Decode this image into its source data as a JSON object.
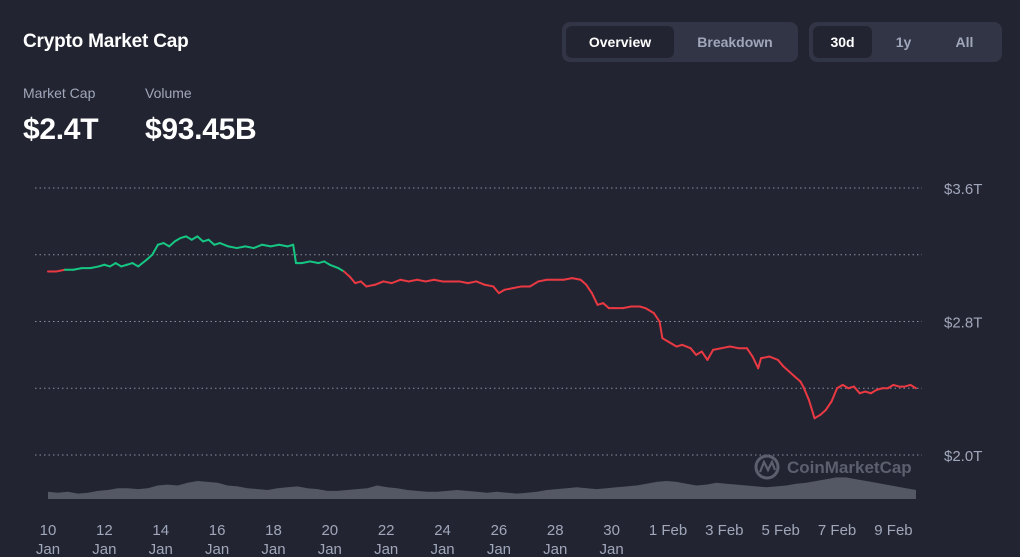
{
  "header": {
    "title": "Crypto Market Cap"
  },
  "tabs": {
    "views": [
      "Overview",
      "Breakdown"
    ],
    "active_view": "Overview"
  },
  "ranges": {
    "options": [
      "30d",
      "1y",
      "All"
    ],
    "active": "30d"
  },
  "stats": {
    "market_cap_label": "Market Cap",
    "market_cap_value": "$2.4T",
    "volume_label": "Volume",
    "volume_value": "$93.45B"
  },
  "watermark": "CoinMarketCap",
  "colors": {
    "up": "#16c784",
    "down": "#ea3943",
    "volume": "#5a5d6a",
    "grid": "#858ca2"
  },
  "chart_data": {
    "type": "line",
    "y_unit": "trillion USD",
    "ylim": [
      1.7,
      3.6
    ],
    "y_ticks": [
      {
        "value": 3.6,
        "label": "$3.6T"
      },
      {
        "value": 2.8,
        "label": "$2.8T"
      },
      {
        "value": 2.0,
        "label": "$2.0T"
      }
    ],
    "y_gridlines": [
      3.6,
      3.2,
      2.8,
      2.4,
      2.0
    ],
    "x_ticks": [
      {
        "x": 0,
        "l1": "10",
        "l2": "Jan"
      },
      {
        "x": 2,
        "l1": "12",
        "l2": "Jan"
      },
      {
        "x": 4,
        "l1": "14",
        "l2": "Jan"
      },
      {
        "x": 6,
        "l1": "16",
        "l2": "Jan"
      },
      {
        "x": 8,
        "l1": "18",
        "l2": "Jan"
      },
      {
        "x": 10,
        "l1": "20",
        "l2": "Jan"
      },
      {
        "x": 12,
        "l1": "22",
        "l2": "Jan"
      },
      {
        "x": 14,
        "l1": "24",
        "l2": "Jan"
      },
      {
        "x": 16,
        "l1": "26",
        "l2": "Jan"
      },
      {
        "x": 18,
        "l1": "28",
        "l2": "Jan"
      },
      {
        "x": 20,
        "l1": "30",
        "l2": "Jan"
      },
      {
        "x": 22,
        "l1": "1 Feb",
        "l2": ""
      },
      {
        "x": 24,
        "l1": "3 Feb",
        "l2": ""
      },
      {
        "x": 26,
        "l1": "5 Feb",
        "l2": ""
      },
      {
        "x": 28,
        "l1": "7 Feb",
        "l2": ""
      },
      {
        "x": 30,
        "l1": "9 Feb",
        "l2": ""
      }
    ],
    "baseline_value": 3.11,
    "series": [
      {
        "values": [
          [
            0.0,
            3.1
          ],
          [
            0.3,
            3.1
          ],
          [
            0.6,
            3.11
          ],
          [
            0.9,
            3.11
          ],
          [
            1.2,
            3.12
          ],
          [
            1.5,
            3.12
          ],
          [
            1.8,
            3.13
          ],
          [
            2.0,
            3.14
          ],
          [
            2.2,
            3.13
          ],
          [
            2.4,
            3.15
          ],
          [
            2.6,
            3.13
          ],
          [
            2.8,
            3.14
          ],
          [
            3.0,
            3.15
          ],
          [
            3.2,
            3.13
          ],
          [
            3.5,
            3.17
          ],
          [
            3.7,
            3.2
          ],
          [
            3.9,
            3.26
          ],
          [
            4.1,
            3.27
          ],
          [
            4.3,
            3.25
          ],
          [
            4.5,
            3.28
          ],
          [
            4.7,
            3.3
          ],
          [
            4.9,
            3.31
          ],
          [
            5.1,
            3.29
          ],
          [
            5.3,
            3.31
          ],
          [
            5.5,
            3.28
          ],
          [
            5.7,
            3.29
          ],
          [
            5.9,
            3.26
          ],
          [
            6.1,
            3.27
          ],
          [
            6.4,
            3.25
          ],
          [
            6.7,
            3.24
          ],
          [
            7.0,
            3.25
          ],
          [
            7.3,
            3.24
          ],
          [
            7.6,
            3.26
          ],
          [
            7.9,
            3.25
          ],
          [
            8.2,
            3.26
          ],
          [
            8.5,
            3.25
          ],
          [
            8.7,
            3.26
          ],
          [
            8.8,
            3.15
          ],
          [
            9.0,
            3.15
          ],
          [
            9.3,
            3.16
          ],
          [
            9.6,
            3.15
          ],
          [
            9.8,
            3.16
          ],
          [
            10.0,
            3.14
          ],
          [
            10.3,
            3.12
          ],
          [
            10.5,
            3.1
          ],
          [
            10.7,
            3.07
          ],
          [
            10.9,
            3.03
          ],
          [
            11.1,
            3.04
          ],
          [
            11.3,
            3.01
          ],
          [
            11.6,
            3.02
          ],
          [
            11.9,
            3.04
          ],
          [
            12.2,
            3.03
          ],
          [
            12.5,
            3.05
          ],
          [
            12.8,
            3.04
          ],
          [
            13.1,
            3.05
          ],
          [
            13.4,
            3.04
          ],
          [
            13.7,
            3.05
          ],
          [
            14.0,
            3.04
          ],
          [
            14.3,
            3.04
          ],
          [
            14.6,
            3.04
          ],
          [
            14.9,
            3.03
          ],
          [
            15.2,
            3.04
          ],
          [
            15.5,
            3.02
          ],
          [
            15.8,
            3.01
          ],
          [
            16.0,
            2.97
          ],
          [
            16.2,
            2.99
          ],
          [
            16.5,
            3.0
          ],
          [
            16.8,
            3.01
          ],
          [
            17.1,
            3.01
          ],
          [
            17.4,
            3.04
          ],
          [
            17.7,
            3.05
          ],
          [
            18.0,
            3.05
          ],
          [
            18.3,
            3.05
          ],
          [
            18.6,
            3.06
          ],
          [
            18.9,
            3.05
          ],
          [
            19.1,
            3.02
          ],
          [
            19.3,
            2.97
          ],
          [
            19.5,
            2.9
          ],
          [
            19.7,
            2.91
          ],
          [
            19.9,
            2.88
          ],
          [
            20.1,
            2.88
          ],
          [
            20.4,
            2.88
          ],
          [
            20.7,
            2.89
          ],
          [
            21.0,
            2.89
          ],
          [
            21.2,
            2.88
          ],
          [
            21.5,
            2.85
          ],
          [
            21.7,
            2.8
          ],
          [
            21.8,
            2.7
          ],
          [
            22.0,
            2.68
          ],
          [
            22.3,
            2.65
          ],
          [
            22.5,
            2.66
          ],
          [
            22.8,
            2.64
          ],
          [
            23.0,
            2.6
          ],
          [
            23.2,
            2.62
          ],
          [
            23.4,
            2.57
          ],
          [
            23.6,
            2.63
          ],
          [
            23.9,
            2.64
          ],
          [
            24.2,
            2.65
          ],
          [
            24.5,
            2.64
          ],
          [
            24.8,
            2.64
          ],
          [
            25.0,
            2.59
          ],
          [
            25.2,
            2.52
          ],
          [
            25.3,
            2.58
          ],
          [
            25.6,
            2.59
          ],
          [
            25.9,
            2.57
          ],
          [
            26.1,
            2.53
          ],
          [
            26.3,
            2.5
          ],
          [
            26.5,
            2.47
          ],
          [
            26.7,
            2.44
          ],
          [
            26.8,
            2.41
          ],
          [
            27.0,
            2.33
          ],
          [
            27.2,
            2.22
          ],
          [
            27.4,
            2.24
          ],
          [
            27.6,
            2.27
          ],
          [
            27.8,
            2.32
          ],
          [
            28.0,
            2.4
          ],
          [
            28.2,
            2.42
          ],
          [
            28.4,
            2.4
          ],
          [
            28.6,
            2.41
          ],
          [
            28.8,
            2.37
          ],
          [
            29.0,
            2.38
          ],
          [
            29.2,
            2.37
          ],
          [
            29.4,
            2.39
          ],
          [
            29.6,
            2.4
          ],
          [
            29.8,
            2.4
          ],
          [
            30.0,
            2.42
          ],
          [
            30.2,
            2.41
          ],
          [
            30.4,
            2.41
          ],
          [
            30.6,
            2.42
          ],
          [
            30.8,
            2.4
          ]
        ]
      }
    ],
    "volume": [
      0.4,
      0.35,
      0.4,
      0.3,
      0.35,
      0.45,
      0.5,
      0.6,
      0.6,
      0.55,
      0.6,
      0.75,
      0.8,
      0.75,
      0.9,
      1.0,
      0.95,
      0.9,
      0.75,
      0.7,
      0.6,
      0.55,
      0.5,
      0.6,
      0.65,
      0.7,
      0.6,
      0.55,
      0.45,
      0.45,
      0.5,
      0.55,
      0.6,
      0.75,
      0.65,
      0.6,
      0.5,
      0.45,
      0.4,
      0.4,
      0.45,
      0.5,
      0.45,
      0.4,
      0.35,
      0.4,
      0.35,
      0.3,
      0.35,
      0.4,
      0.5,
      0.55,
      0.6,
      0.65,
      0.6,
      0.55,
      0.6,
      0.65,
      0.7,
      0.75,
      0.85,
      0.95,
      1.0,
      0.95,
      0.85,
      0.75,
      0.8,
      0.9,
      0.85,
      0.8,
      0.75,
      0.7,
      0.65,
      0.7,
      0.75,
      0.85,
      0.9,
      1.0,
      1.1,
      1.2,
      1.2,
      1.1,
      1.0,
      0.9,
      0.8,
      0.7,
      0.6,
      0.5
    ]
  }
}
